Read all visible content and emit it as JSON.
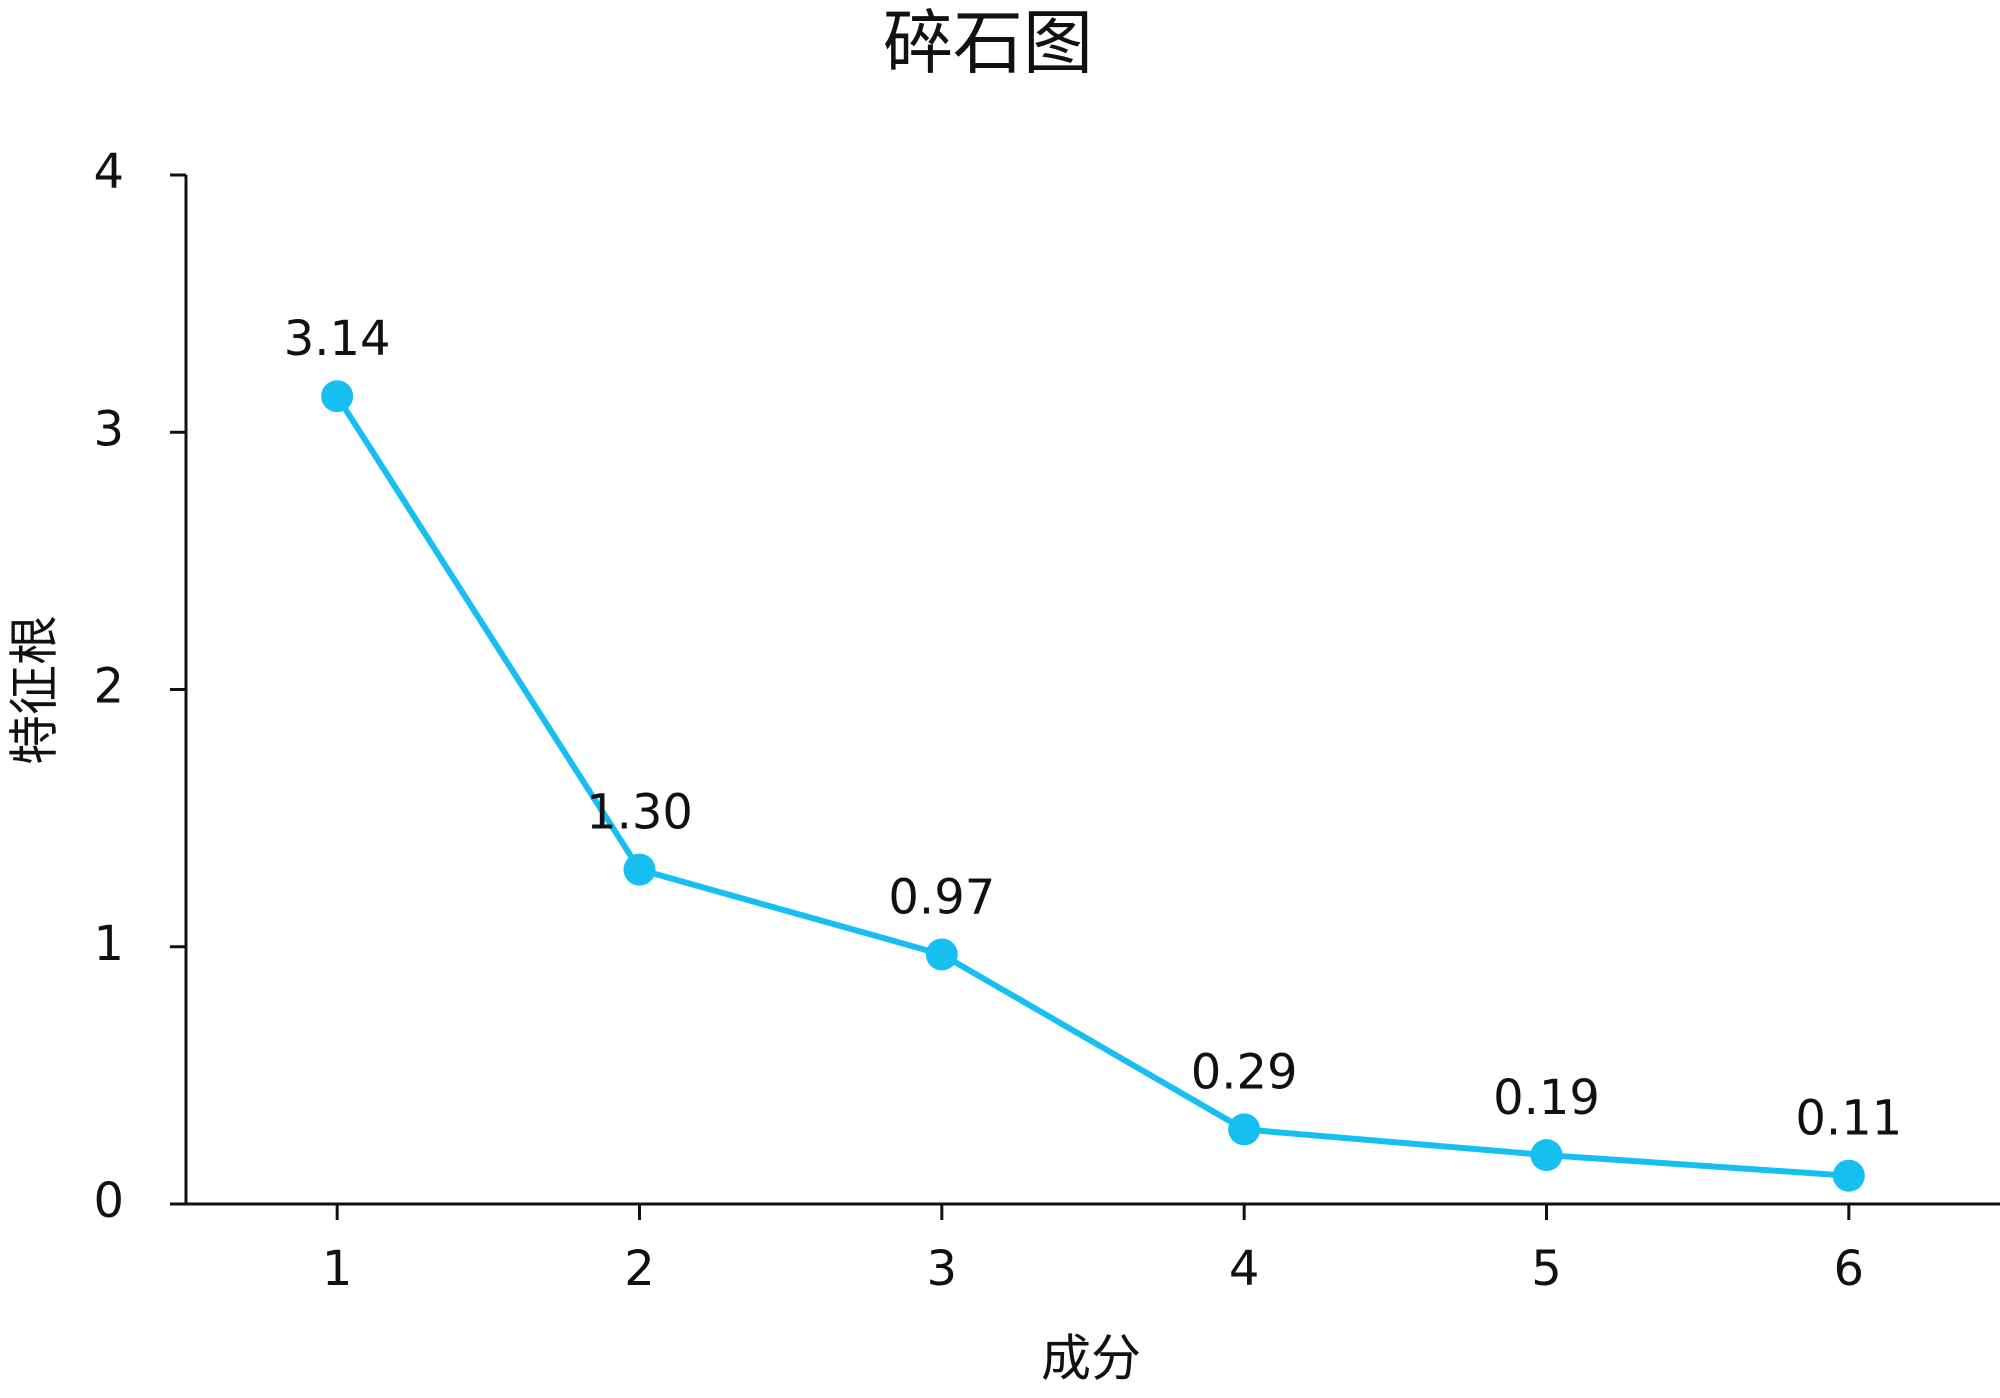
{
  "chart_data": {
    "type": "line",
    "title": "碎石图",
    "x_label": "成分",
    "y_label": "特征根",
    "categories": [
      "1",
      "2",
      "3",
      "4",
      "5",
      "6"
    ],
    "series": [
      {
        "name": "特征根",
        "color": "#17bff0",
        "values": [
          3.14,
          1.3,
          0.97,
          0.29,
          0.19,
          0.11
        ],
        "value_labels": [
          "3.14",
          "1.30",
          "0.97",
          "0.29",
          "0.19",
          "0.11"
        ]
      }
    ],
    "ylim": [
      0,
      4
    ],
    "yticks": [
      0,
      1,
      2,
      3,
      4
    ],
    "grid": false
  }
}
